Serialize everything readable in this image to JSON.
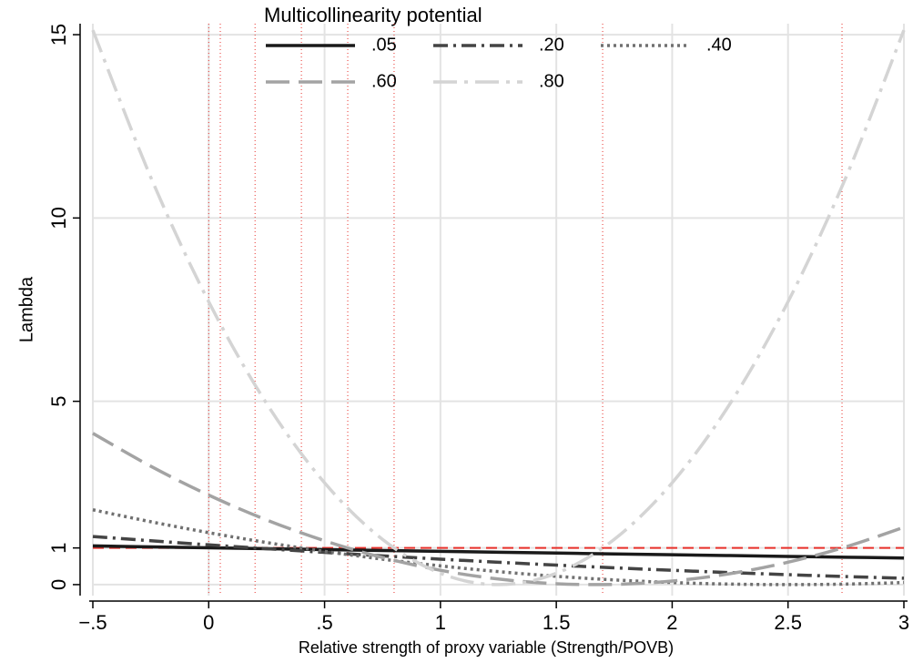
{
  "chart_data": {
    "type": "line",
    "x_label": "Relative strength of proxy variable (Strength/POVB)",
    "y_label": "Lambda",
    "legend_title": "Multicollinearity potential",
    "legend_position": "top",
    "grid": true,
    "x": [
      -0.5,
      -0.25,
      0,
      0.25,
      0.5,
      0.75,
      1,
      1.25,
      1.5,
      1.75,
      2,
      2.25,
      2.5,
      2.75,
      3
    ],
    "series": [
      {
        "name": ".05",
        "color": "#1a1a1a",
        "dash": "solid",
        "values": [
          1.0559,
          1.0303,
          1.005,
          0.98,
          0.9554,
          0.9311,
          0.907,
          0.8833,
          0.8599,
          0.8368,
          0.8141,
          0.7916,
          0.7695,
          0.7476,
          0.7261
        ]
      },
      {
        "name": ".20",
        "color": "#444444",
        "dash": "dashdot",
        "values": [
          1.3129,
          1.1963,
          1.0851,
          0.9793,
          0.8789,
          0.784,
          0.6944,
          0.6104,
          0.5317,
          0.4584,
          0.3906,
          0.3282,
          0.2713,
          0.2197,
          0.1736
        ]
      },
      {
        "name": ".40",
        "color": "#707070",
        "dash": "dot",
        "values": [
          2.0408,
          1.7149,
          1.4172,
          1.148,
          0.907,
          0.6944,
          0.5102,
          0.3543,
          0.2268,
          0.1276,
          0.0567,
          0.0142,
          0,
          0.0142,
          0.0567
        ]
      },
      {
        "name": ".60",
        "color": "#a3a3a3",
        "dash": "longdash",
        "values": [
          4.126,
          3.2288,
          2.4414,
          1.7639,
          1.1963,
          0.7385,
          0.3906,
          0.1526,
          0.0244,
          0.0061,
          0.0977,
          0.2991,
          0.6104,
          1.0315,
          1.5625
        ]
      },
      {
        "name": ".80",
        "color": "#d4d4d4",
        "dash": "longdashdot",
        "values": [
          15.1235,
          11.1111,
          7.716,
          4.9383,
          2.7778,
          1.2346,
          0.3086,
          0,
          0.3086,
          1.2346,
          2.7778,
          4.9383,
          7.716,
          11.1111,
          15.1235
        ]
      }
    ],
    "reference_hline": {
      "value": 1,
      "color": "#e8302a"
    },
    "reference_vlines": {
      "values": [
        0,
        0.05,
        0.2,
        0.4,
        0.6,
        0.8,
        1.7,
        2.733
      ],
      "color": "#e8302a"
    },
    "xlim": [
      -0.5,
      3
    ],
    "ylim": [
      -0.3,
      15.3
    ],
    "xticks": [
      {
        "value": -0.5,
        "label": "−.5"
      },
      0,
      {
        "value": 0.5,
        "label": ".5"
      },
      1,
      1.5,
      2,
      2.5,
      3
    ],
    "yticks": [
      0,
      1,
      5,
      10,
      15
    ]
  }
}
